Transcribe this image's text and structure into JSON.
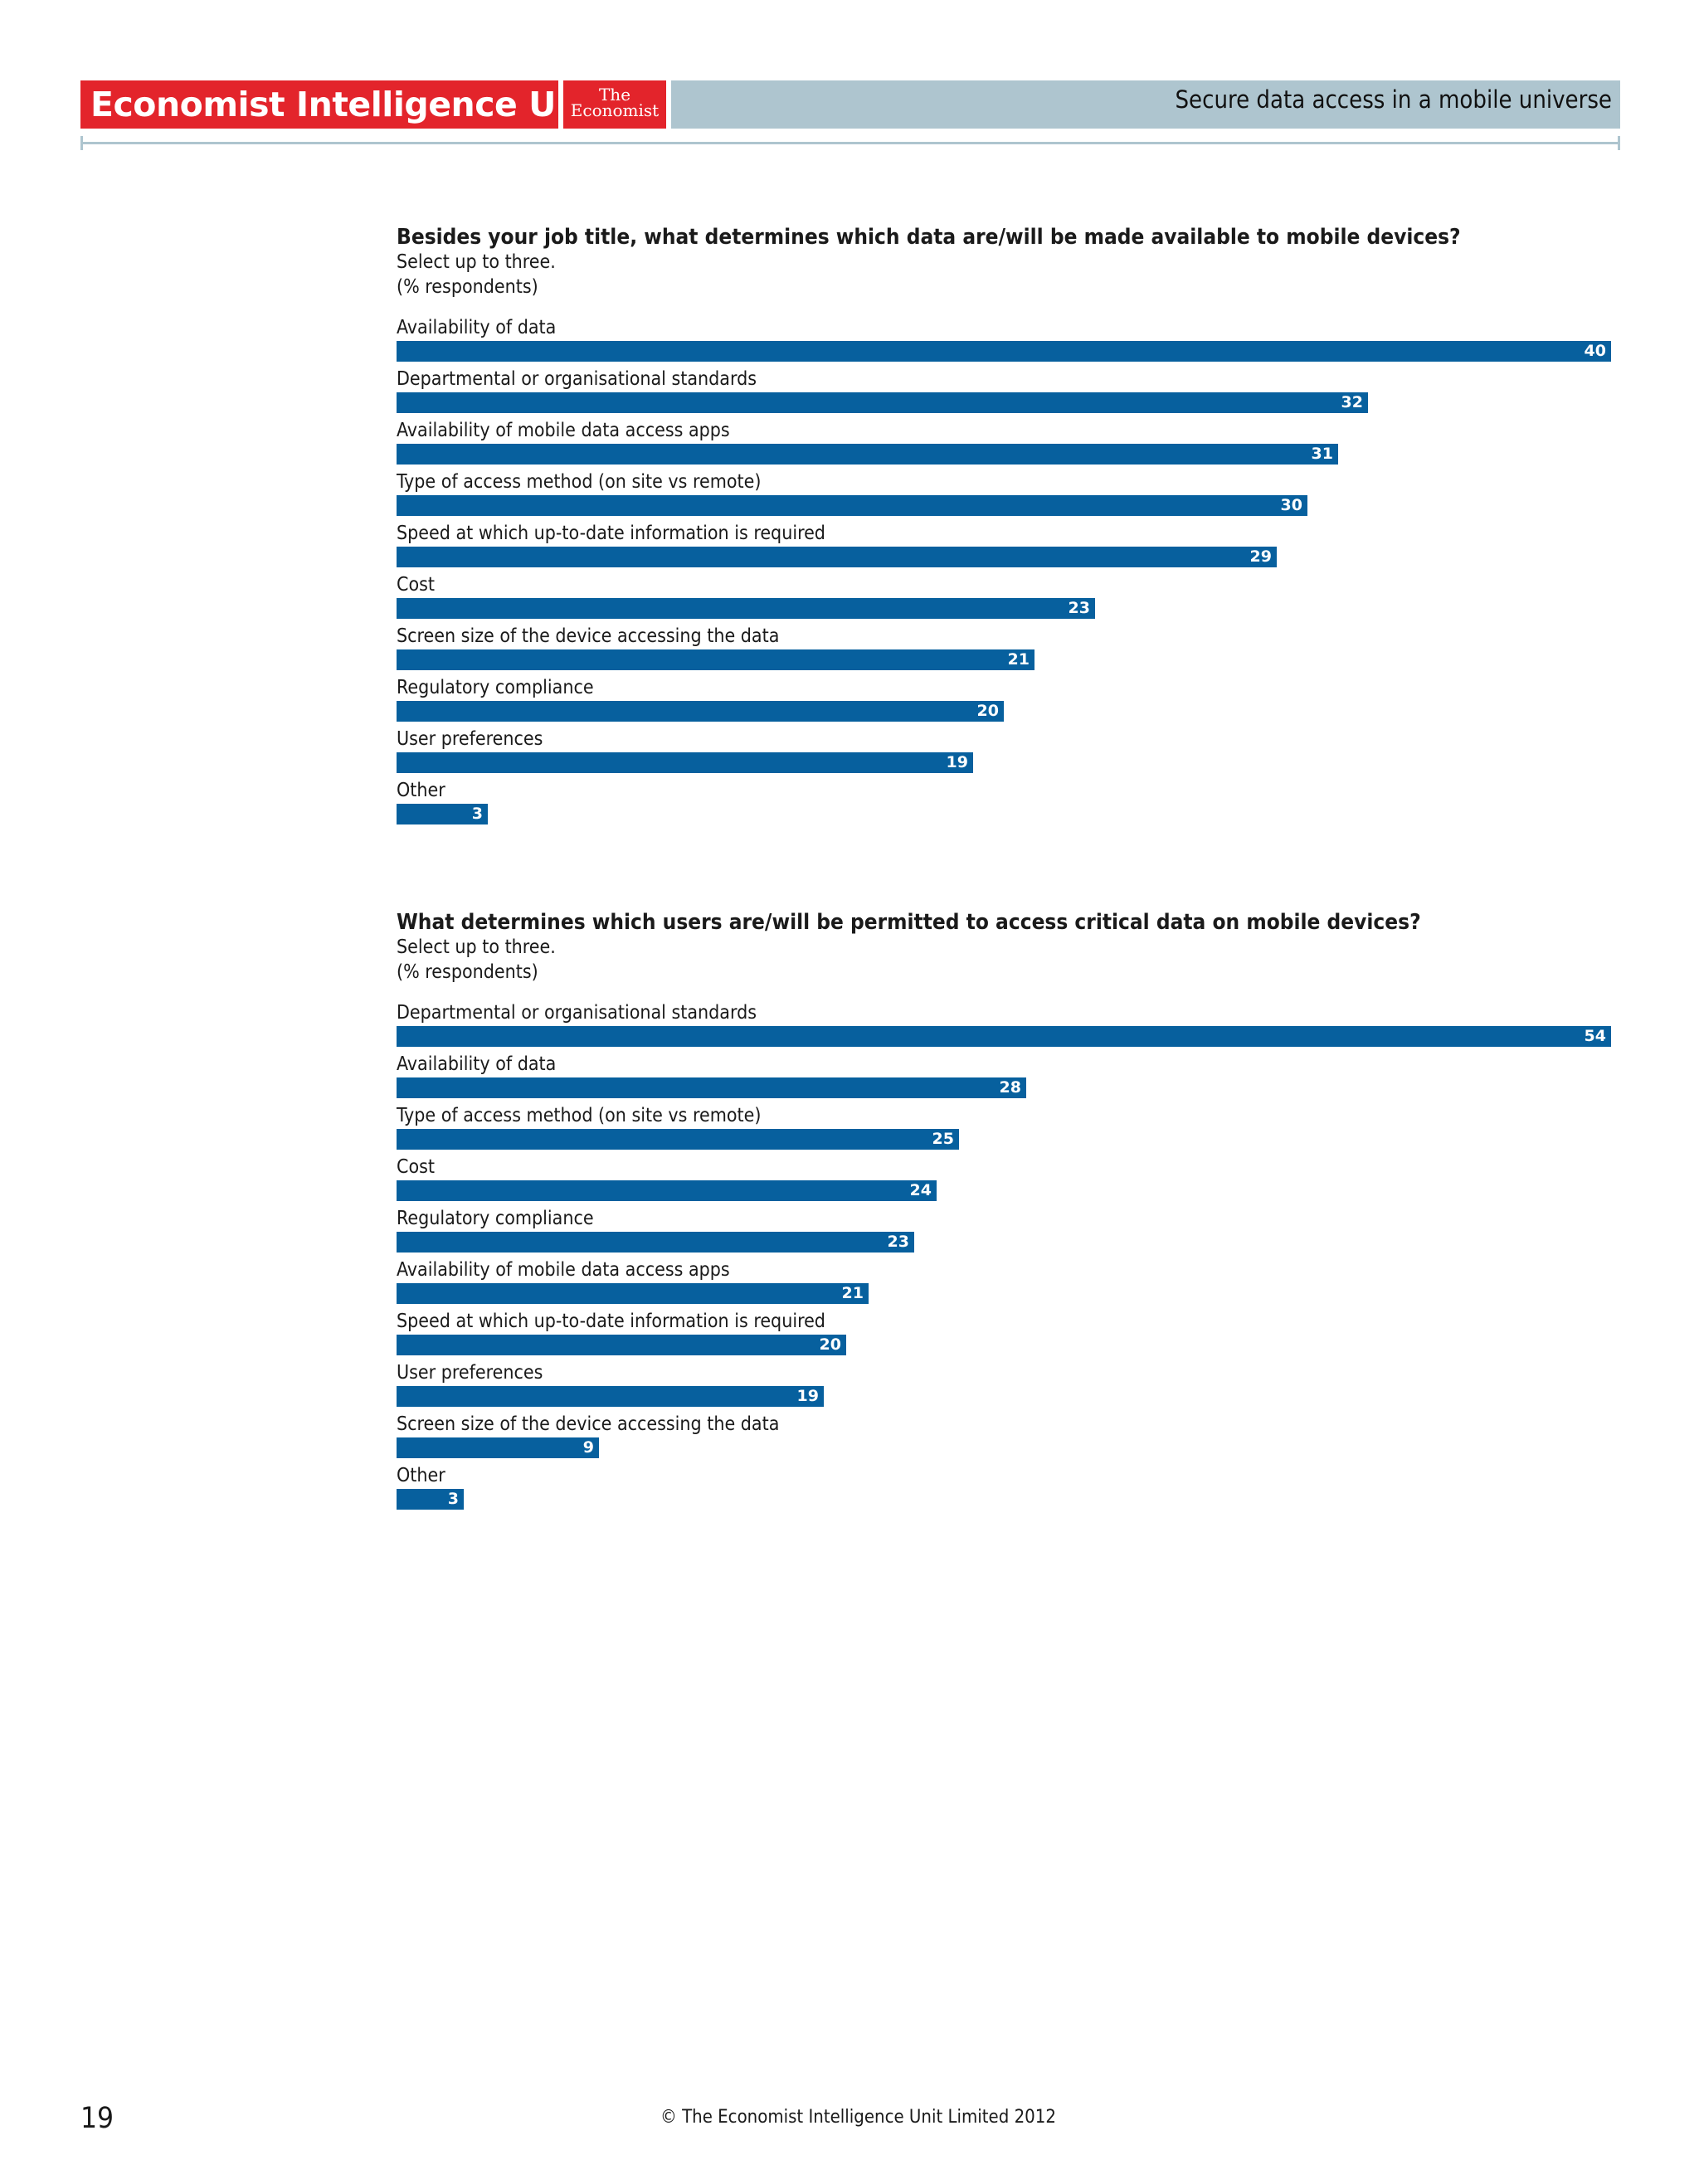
{
  "header": {
    "brand": "Economist Intelligence Unit",
    "logo_line1": "The",
    "logo_line2": "Economist",
    "report_title": "Secure data access in a mobile universe"
  },
  "footer": {
    "page_number": "19",
    "copyright": "© The Economist Intelligence Unit Limited 2012"
  },
  "colors": {
    "bar": "#07609e",
    "brand_red": "#e3242b",
    "band": "#aec5cf"
  },
  "chart_data": [
    {
      "type": "bar",
      "orientation": "horizontal",
      "title": "Besides your job title, what determines which data are/will be made available to mobile devices?",
      "subtitle": "Select up to three.",
      "unit_note": "(% respondents)",
      "categories": [
        "Availability of data",
        "Departmental or organisational standards",
        "Availability of mobile data access apps",
        "Type of access method (on site vs remote)",
        "Speed at which up-to-date information is required",
        "Cost",
        "Screen size of the device accessing the data",
        "Regulatory compliance",
        "User preferences",
        "Other"
      ],
      "values": [
        40,
        32,
        31,
        30,
        29,
        23,
        21,
        20,
        19,
        3
      ],
      "xlim": [
        0,
        40
      ],
      "grid": false,
      "legend": "none"
    },
    {
      "type": "bar",
      "orientation": "horizontal",
      "title": "What determines which users are/will be permitted to access critical data on mobile devices?",
      "subtitle": "Select up to three.",
      "unit_note": "(% respondents)",
      "categories": [
        "Departmental or organisational standards",
        "Availability of data",
        "Type of access method (on site vs remote)",
        "Cost",
        "Regulatory compliance",
        "Availability of mobile data access apps",
        "Speed at which up-to-date information is required",
        "User preferences",
        "Screen size of the device accessing the data",
        "Other"
      ],
      "values": [
        54,
        28,
        25,
        24,
        23,
        21,
        20,
        19,
        9,
        3
      ],
      "xlim": [
        0,
        54
      ],
      "grid": false,
      "legend": "none"
    }
  ]
}
